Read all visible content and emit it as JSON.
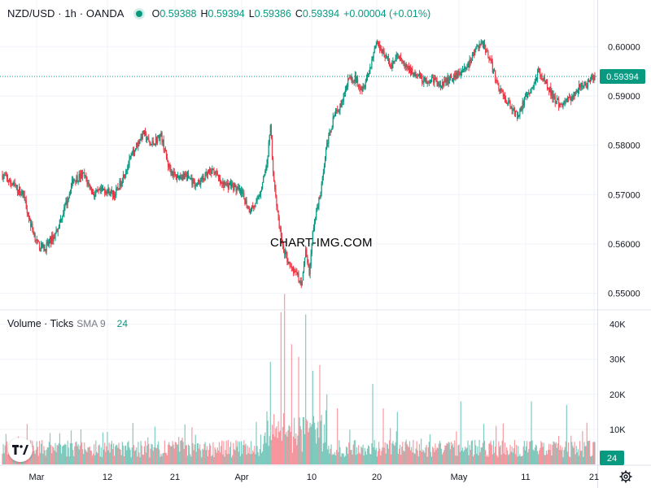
{
  "header": {
    "symbol": "NZD/USD · 1h · OANDA",
    "open_label": "O",
    "open": "0.59388",
    "high_label": "H",
    "high": "0.59394",
    "low_label": "L",
    "low": "0.59386",
    "close_label": "C",
    "close": "0.59394",
    "change": "+0.00004 (+0.01%)",
    "status_color": "#089981"
  },
  "volume_legend": {
    "name": "Volume · Ticks",
    "sma_label": "SMA 9",
    "sma_value": "24"
  },
  "watermark": "CHART-IMG.COM",
  "colors": {
    "up": "#089981",
    "down": "#f23645",
    "grid": "#f0f3fa",
    "text": "#131722"
  },
  "icons": {
    "logo": "tradingview-logo-icon",
    "settings": "gear-icon"
  },
  "chart_data": [
    {
      "type": "candlestick",
      "title": "NZD/USD · 1h · OANDA",
      "price_axis": {
        "ticks": [
          "0.60000",
          "0.59000",
          "0.58000",
          "0.57000",
          "0.56000",
          "0.55000"
        ],
        "range": [
          0.5468,
          0.6045
        ]
      },
      "last_price": "0.59394",
      "x_ticks": [
        "Mar",
        "12",
        "21",
        "Apr",
        "10",
        "20",
        "May",
        "11",
        "21"
      ],
      "approx_close_path": [
        [
          0,
          0.574
        ],
        [
          3,
          0.572
        ],
        [
          6,
          0.57
        ],
        [
          8,
          0.564
        ],
        [
          10,
          0.56
        ],
        [
          12,
          0.559
        ],
        [
          15,
          0.562
        ],
        [
          18,
          0.568
        ],
        [
          20,
          0.573
        ],
        [
          23,
          0.574
        ],
        [
          26,
          0.57
        ],
        [
          29,
          0.571
        ],
        [
          32,
          0.57
        ],
        [
          35,
          0.575
        ],
        [
          38,
          0.58
        ],
        [
          40,
          0.5825
        ],
        [
          42,
          0.58
        ],
        [
          45,
          0.582
        ],
        [
          47,
          0.576
        ],
        [
          49,
          0.5735
        ],
        [
          52,
          0.574
        ],
        [
          55,
          0.572
        ],
        [
          58,
          0.574
        ],
        [
          60,
          0.575
        ],
        [
          62,
          0.572
        ],
        [
          65,
          0.572
        ],
        [
          68,
          0.57
        ],
        [
          70,
          0.567
        ],
        [
          72,
          0.568
        ],
        [
          74,
          0.573
        ],
        [
          75,
          0.576
        ],
        [
          76,
          0.584
        ],
        [
          77,
          0.572
        ],
        [
          79,
          0.561
        ],
        [
          81,
          0.556
        ],
        [
          83,
          0.554
        ],
        [
          85,
          0.552
        ],
        [
          86,
          0.559
        ],
        [
          87,
          0.554
        ],
        [
          88,
          0.562
        ],
        [
          90,
          0.57
        ],
        [
          92,
          0.58
        ],
        [
          94,
          0.586
        ],
        [
          96,
          0.588
        ],
        [
          98,
          0.593
        ],
        [
          100,
          0.5935
        ],
        [
          102,
          0.5915
        ],
        [
          104,
          0.595
        ],
        [
          106,
          0.601
        ],
        [
          108,
          0.599
        ],
        [
          110,
          0.596
        ],
        [
          112,
          0.598
        ],
        [
          114,
          0.596
        ],
        [
          116,
          0.595
        ],
        [
          118,
          0.594
        ],
        [
          120,
          0.593
        ],
        [
          122,
          0.5935
        ],
        [
          124,
          0.592
        ],
        [
          126,
          0.593
        ],
        [
          128,
          0.594
        ],
        [
          130,
          0.595
        ],
        [
          132,
          0.596
        ],
        [
          134,
          0.599
        ],
        [
          136,
          0.601
        ],
        [
          138,
          0.598
        ],
        [
          140,
          0.593
        ],
        [
          142,
          0.59
        ],
        [
          144,
          0.588
        ],
        [
          146,
          0.586
        ],
        [
          148,
          0.589
        ],
        [
          150,
          0.591
        ],
        [
          152,
          0.595
        ],
        [
          154,
          0.593
        ],
        [
          156,
          0.59
        ],
        [
          158,
          0.588
        ],
        [
          160,
          0.589
        ],
        [
          162,
          0.59
        ],
        [
          164,
          0.592
        ],
        [
          166,
          0.5925
        ],
        [
          168,
          0.5939
        ]
      ]
    },
    {
      "type": "bar",
      "title": "Volume · Ticks",
      "y_axis": {
        "ticks": [
          "40K",
          "30K",
          "20K",
          "10K"
        ],
        "range": [
          0,
          42000
        ]
      },
      "last_value": "24",
      "spikes": [
        [
          76,
          22000
        ],
        [
          79,
          36000
        ],
        [
          80,
          40000
        ],
        [
          82,
          34000
        ],
        [
          84,
          30000
        ],
        [
          86,
          40000
        ],
        [
          88,
          24000
        ],
        [
          90,
          22000
        ],
        [
          92,
          20000
        ],
        [
          95,
          16000
        ],
        [
          105,
          23000
        ],
        [
          108,
          16000
        ],
        [
          112,
          15000
        ],
        [
          130,
          18000
        ],
        [
          150,
          18000
        ],
        [
          160,
          17000
        ]
      ]
    }
  ]
}
